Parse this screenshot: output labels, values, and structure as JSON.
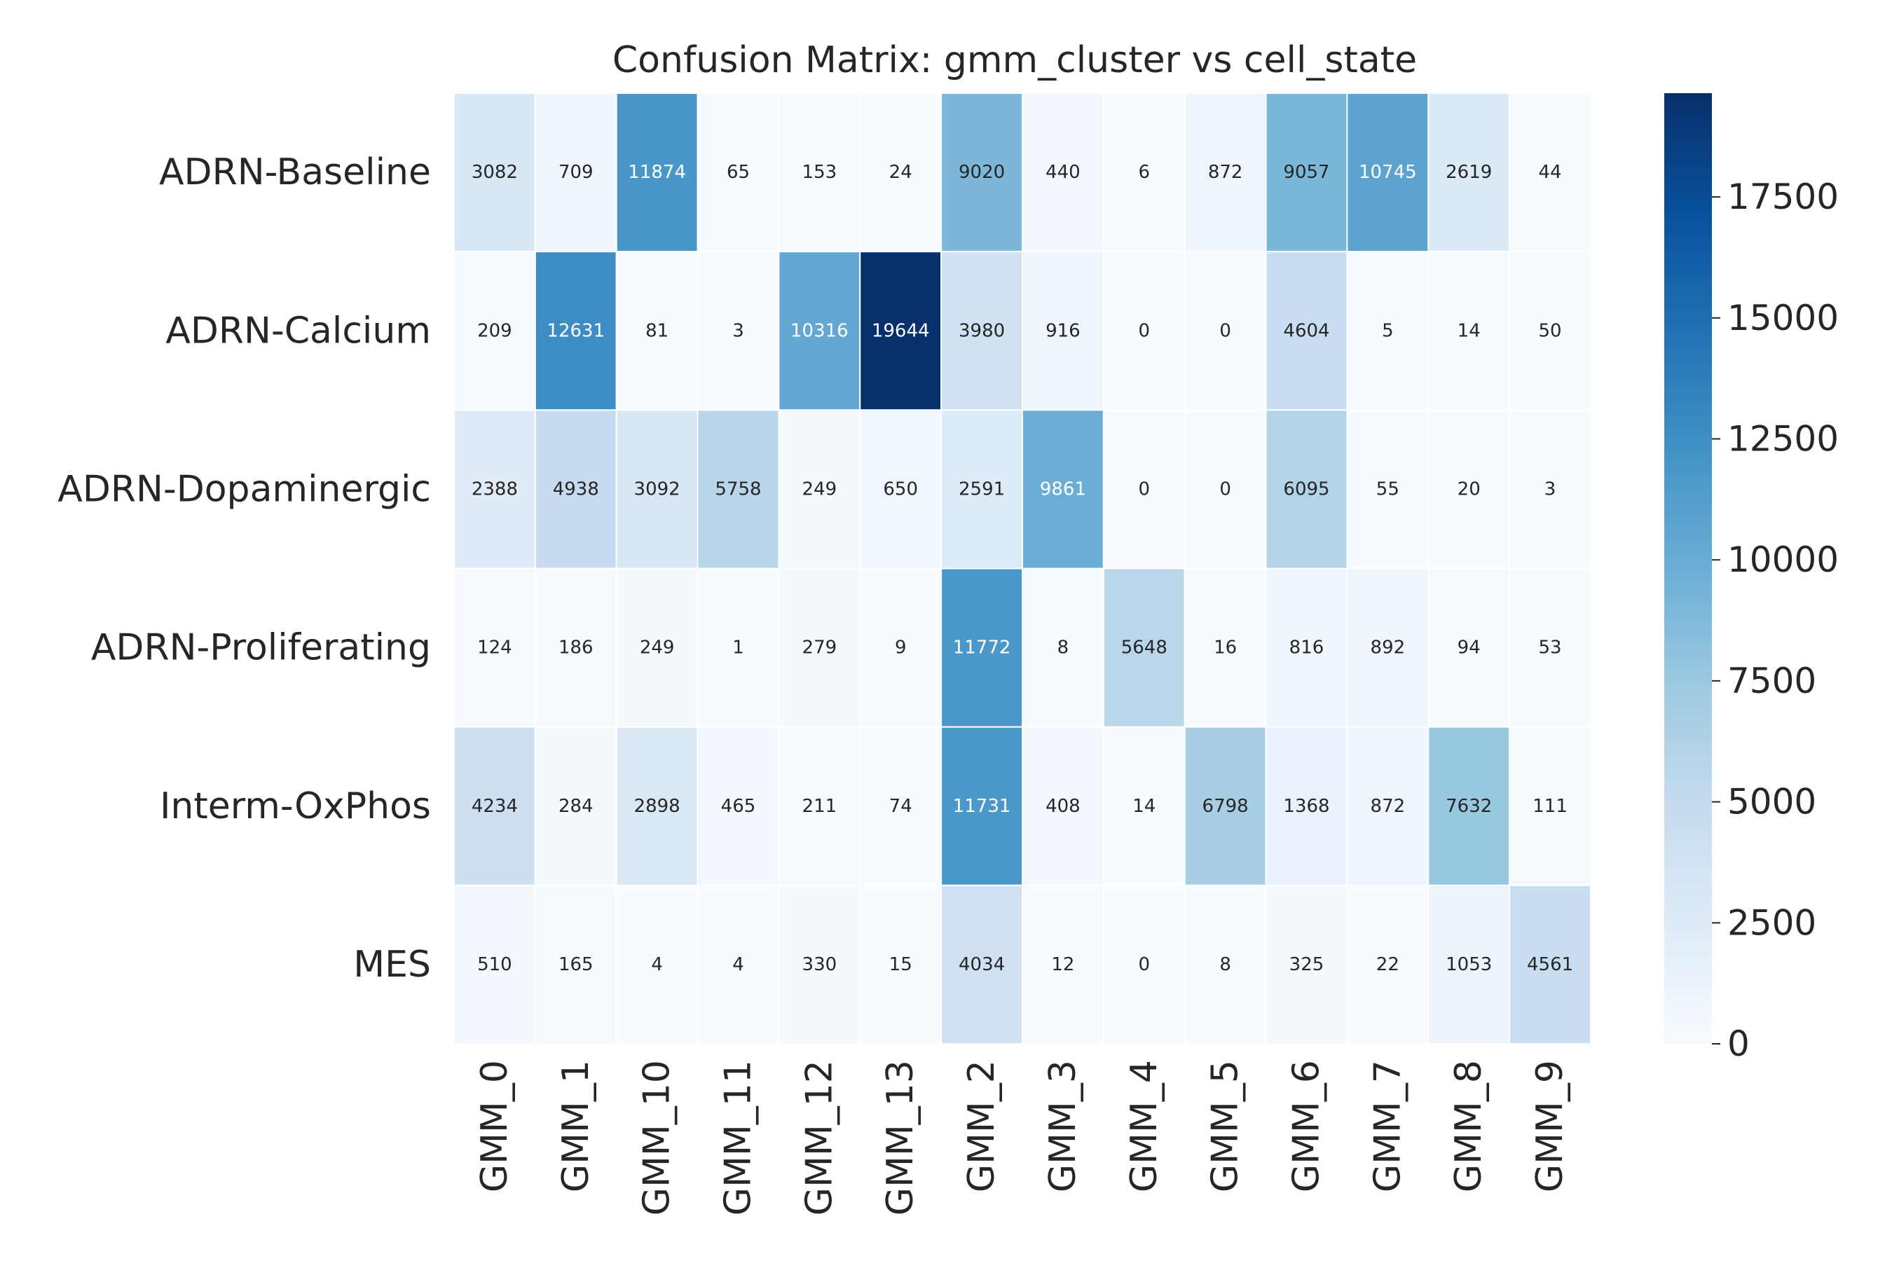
{
  "chart_data": {
    "type": "heatmap",
    "title": "Confusion Matrix: gmm_cluster vs cell_state",
    "rows": [
      "ADRN-Baseline",
      "ADRN-Calcium",
      "ADRN-Dopaminergic",
      "ADRN-Proliferating",
      "Interm-OxPhos",
      "MES"
    ],
    "columns": [
      "GMM_0",
      "GMM_1",
      "GMM_10",
      "GMM_11",
      "GMM_12",
      "GMM_13",
      "GMM_2",
      "GMM_3",
      "GMM_4",
      "GMM_5",
      "GMM_6",
      "GMM_7",
      "GMM_8",
      "GMM_9"
    ],
    "values": [
      [
        3082,
        709,
        11874,
        65,
        153,
        24,
        9020,
        440,
        6,
        872,
        9057,
        10745,
        2619,
        44
      ],
      [
        209,
        12631,
        81,
        3,
        10316,
        19644,
        3980,
        916,
        0,
        0,
        4604,
        5,
        14,
        50
      ],
      [
        2388,
        4938,
        3092,
        5758,
        249,
        650,
        2591,
        9861,
        0,
        0,
        6095,
        55,
        20,
        3
      ],
      [
        124,
        186,
        249,
        1,
        279,
        9,
        11772,
        8,
        5648,
        16,
        816,
        892,
        94,
        53
      ],
      [
        4234,
        284,
        2898,
        465,
        211,
        74,
        11731,
        408,
        14,
        6798,
        1368,
        872,
        7632,
        111
      ],
      [
        510,
        165,
        4,
        4,
        330,
        15,
        4034,
        12,
        0,
        8,
        325,
        22,
        1053,
        4561
      ]
    ],
    "colormap": "Blues",
    "colorbar": {
      "range": [
        0,
        19644
      ],
      "ticks": [
        0,
        2500,
        5000,
        7500,
        10000,
        12500,
        15000,
        17500
      ]
    }
  }
}
